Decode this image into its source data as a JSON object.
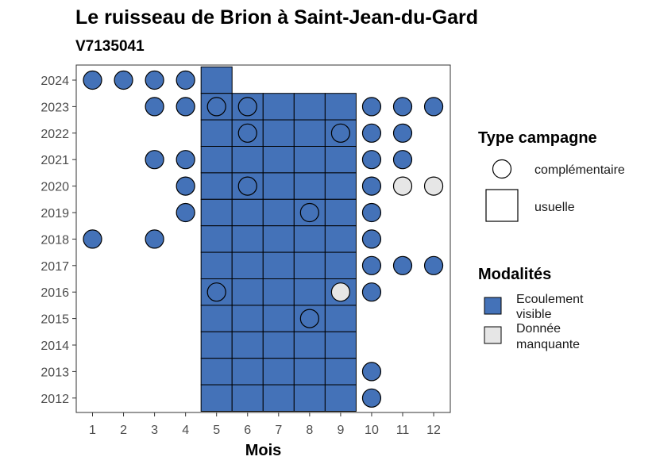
{
  "chart_data": {
    "type": "heatmap",
    "title": "Le ruisseau de Brion à Saint-Jean-du-Gard",
    "subtitle": "V7135041",
    "xlabel": "Mois",
    "ylabel": "",
    "x_ticks": [
      "1",
      "2",
      "3",
      "4",
      "5",
      "6",
      "7",
      "8",
      "9",
      "10",
      "11",
      "12"
    ],
    "y_ticks": [
      "2012",
      "2013",
      "2014",
      "2015",
      "2016",
      "2017",
      "2018",
      "2019",
      "2020",
      "2021",
      "2022",
      "2023",
      "2024"
    ],
    "colors": {
      "Ecoulement visible": "#4472b8",
      "Donnée manquante": "#e6e6e6"
    },
    "usuelle": [
      {
        "year": 2024,
        "months": [
          5
        ],
        "modalite": "Ecoulement visible"
      },
      {
        "year": 2023,
        "months": [
          5,
          6,
          7,
          8,
          9
        ],
        "modalite": "Ecoulement visible"
      },
      {
        "year": 2022,
        "months": [
          5,
          6,
          7,
          8,
          9
        ],
        "modalite": "Ecoulement visible"
      },
      {
        "year": 2021,
        "months": [
          5,
          6,
          7,
          8,
          9
        ],
        "modalite": "Ecoulement visible"
      },
      {
        "year": 2020,
        "months": [
          5,
          6,
          7,
          8,
          9
        ],
        "modalite": "Ecoulement visible"
      },
      {
        "year": 2019,
        "months": [
          5,
          6,
          7,
          8,
          9
        ],
        "modalite": "Ecoulement visible"
      },
      {
        "year": 2018,
        "months": [
          5,
          6,
          7,
          8,
          9
        ],
        "modalite": "Ecoulement visible"
      },
      {
        "year": 2017,
        "months": [
          5,
          6,
          7,
          8,
          9
        ],
        "modalite": "Ecoulement visible"
      },
      {
        "year": 2016,
        "months": [
          5,
          6,
          7,
          8,
          9
        ],
        "modalite": "Ecoulement visible"
      },
      {
        "year": 2015,
        "months": [
          5,
          6,
          7,
          8,
          9
        ],
        "modalite": "Ecoulement visible"
      },
      {
        "year": 2014,
        "months": [
          5,
          6,
          7,
          8,
          9
        ],
        "modalite": "Ecoulement visible"
      },
      {
        "year": 2013,
        "months": [
          5,
          6,
          7,
          8,
          9
        ],
        "modalite": "Ecoulement visible"
      },
      {
        "year": 2012,
        "months": [
          5,
          6,
          7,
          8,
          9
        ],
        "modalite": "Ecoulement visible"
      }
    ],
    "complementaire": [
      {
        "year": 2024,
        "month": 1,
        "modalite": "Ecoulement visible"
      },
      {
        "year": 2024,
        "month": 2,
        "modalite": "Ecoulement visible"
      },
      {
        "year": 2024,
        "month": 3,
        "modalite": "Ecoulement visible"
      },
      {
        "year": 2024,
        "month": 4,
        "modalite": "Ecoulement visible"
      },
      {
        "year": 2023,
        "month": 3,
        "modalite": "Ecoulement visible"
      },
      {
        "year": 2023,
        "month": 4,
        "modalite": "Ecoulement visible"
      },
      {
        "year": 2023,
        "month": 5,
        "modalite": "Ecoulement visible"
      },
      {
        "year": 2023,
        "month": 6,
        "modalite": "Ecoulement visible"
      },
      {
        "year": 2023,
        "month": 10,
        "modalite": "Ecoulement visible"
      },
      {
        "year": 2023,
        "month": 11,
        "modalite": "Ecoulement visible"
      },
      {
        "year": 2023,
        "month": 12,
        "modalite": "Ecoulement visible"
      },
      {
        "year": 2022,
        "month": 6,
        "modalite": "Ecoulement visible"
      },
      {
        "year": 2022,
        "month": 9,
        "modalite": "Ecoulement visible"
      },
      {
        "year": 2022,
        "month": 10,
        "modalite": "Ecoulement visible"
      },
      {
        "year": 2022,
        "month": 11,
        "modalite": "Ecoulement visible"
      },
      {
        "year": 2021,
        "month": 3,
        "modalite": "Ecoulement visible"
      },
      {
        "year": 2021,
        "month": 4,
        "modalite": "Ecoulement visible"
      },
      {
        "year": 2021,
        "month": 10,
        "modalite": "Ecoulement visible"
      },
      {
        "year": 2021,
        "month": 11,
        "modalite": "Ecoulement visible"
      },
      {
        "year": 2020,
        "month": 4,
        "modalite": "Ecoulement visible"
      },
      {
        "year": 2020,
        "month": 6,
        "modalite": "Ecoulement visible"
      },
      {
        "year": 2020,
        "month": 10,
        "modalite": "Ecoulement visible"
      },
      {
        "year": 2020,
        "month": 11,
        "modalite": "Donnée manquante"
      },
      {
        "year": 2020,
        "month": 12,
        "modalite": "Donnée manquante"
      },
      {
        "year": 2019,
        "month": 4,
        "modalite": "Ecoulement visible"
      },
      {
        "year": 2019,
        "month": 8,
        "modalite": "Ecoulement visible"
      },
      {
        "year": 2019,
        "month": 10,
        "modalite": "Ecoulement visible"
      },
      {
        "year": 2018,
        "month": 1,
        "modalite": "Ecoulement visible"
      },
      {
        "year": 2018,
        "month": 3,
        "modalite": "Ecoulement visible"
      },
      {
        "year": 2018,
        "month": 10,
        "modalite": "Ecoulement visible"
      },
      {
        "year": 2017,
        "month": 10,
        "modalite": "Ecoulement visible"
      },
      {
        "year": 2017,
        "month": 11,
        "modalite": "Ecoulement visible"
      },
      {
        "year": 2017,
        "month": 12,
        "modalite": "Ecoulement visible"
      },
      {
        "year": 2016,
        "month": 5,
        "modalite": "Ecoulement visible"
      },
      {
        "year": 2016,
        "month": 9,
        "modalite": "Donnée manquante"
      },
      {
        "year": 2016,
        "month": 10,
        "modalite": "Ecoulement visible"
      },
      {
        "year": 2015,
        "month": 8,
        "modalite": "Ecoulement visible"
      },
      {
        "year": 2013,
        "month": 10,
        "modalite": "Ecoulement visible"
      },
      {
        "year": 2012,
        "month": 10,
        "modalite": "Ecoulement visible"
      }
    ],
    "legend": {
      "placement": "right",
      "type_title": "Type campagne",
      "type_items": [
        "complémentaire",
        "usuelle"
      ],
      "modalites_title": "Modalités",
      "modalites_items": [
        {
          "line1": "Ecoulement",
          "line2": "visible",
          "color": "#4472b8"
        },
        {
          "line1": "Donnée",
          "line2": "manquante",
          "color": "#e6e6e6"
        }
      ]
    }
  }
}
